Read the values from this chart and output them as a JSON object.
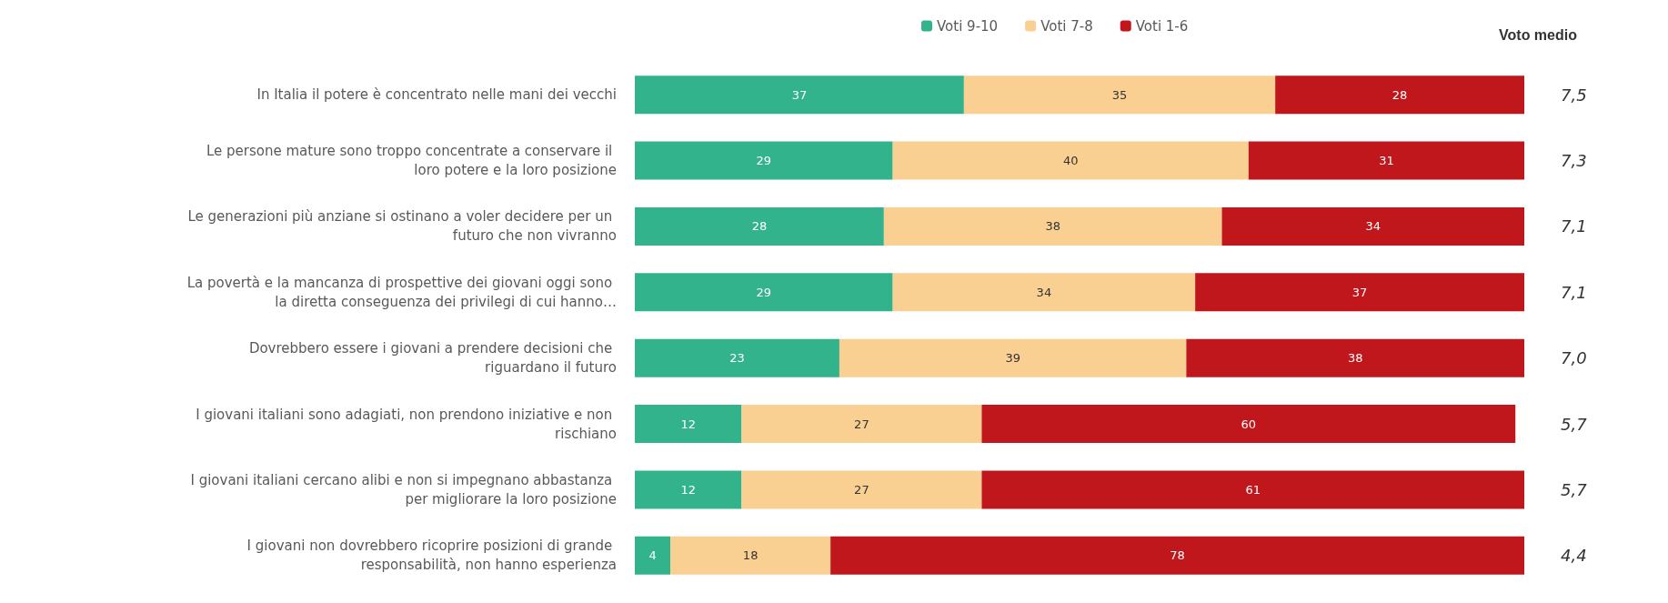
{
  "chart_data": {
    "type": "bar",
    "orientation": "horizontal",
    "stacked": true,
    "data_labels": true,
    "legend": "top",
    "categories": [
      "In Italia il potere è concentrato nelle mani dei vecchi",
      "Le persone mature sono troppo concentrate a conservare il loro potere e la loro posizione",
      "Le generazioni più anziane si ostinano a voler decidere per un futuro che non vivranno",
      "La povertà e la mancanza di prospettive dei giovani oggi sono la diretta conseguenza dei privilegi di cui hanno…",
      "Dovrebbero essere i giovani a prendere decisioni che riguardano il futuro",
      "I giovani italiani sono adagiati, non prendono iniziative e non rischiano",
      "I giovani italiani cercano alibi e non si impegnano abbastanza per migliorare la loro posizione",
      "I giovani non dovrebbero ricoprire posizioni di grande responsabilità, non hanno esperienza"
    ],
    "series": [
      {
        "name": "Voti 9-10",
        "color": "#33b38b",
        "values": [
          37,
          29,
          28,
          29,
          23,
          12,
          12,
          4
        ]
      },
      {
        "name": "Voti 7-8",
        "color": "#f9cf92",
        "values": [
          35,
          40,
          38,
          34,
          39,
          27,
          27,
          18
        ]
      },
      {
        "name": "Voti 1-6",
        "color": "#c0171c",
        "values": [
          28,
          31,
          34,
          37,
          38,
          60,
          61,
          78
        ]
      }
    ],
    "annotations": [
      "Voto medio",
      "7,5",
      "7,3",
      "7,1",
      "7,1",
      "7,0",
      "5,7",
      "5,7",
      "4,4"
    ]
  }
}
